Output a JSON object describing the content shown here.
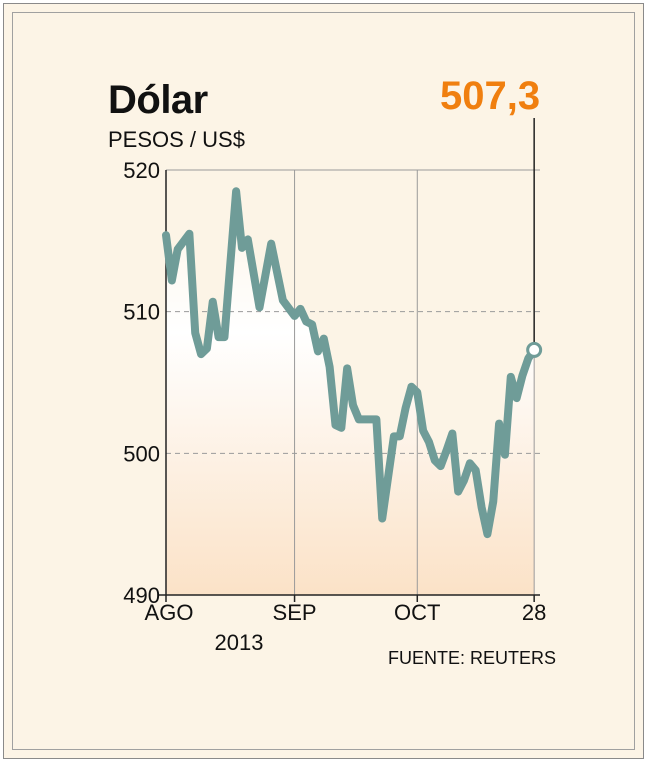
{
  "chart_data": {
    "type": "line",
    "title": "Dólar",
    "subtitle": "PESOS / US$",
    "ylim": [
      490,
      520
    ],
    "yticks": [
      520,
      510,
      500,
      490
    ],
    "xlim": [
      0,
      64
    ],
    "xticks": [
      {
        "label": "AGO",
        "x": 0
      },
      {
        "label": "SEP",
        "x": 22
      },
      {
        "label": "OCT",
        "x": 43
      },
      {
        "label": "28",
        "x": 63
      }
    ],
    "year_label": "2013",
    "current_value_label": "507,3",
    "grid": true,
    "source": "FUENTE: REUTERS",
    "colors": {
      "line": "#6f9c98",
      "accent": "#f07f0f",
      "grid": "#9a9a9a"
    },
    "series": [
      {
        "values": [
          {
            "x": 0,
            "y": 515.4
          },
          {
            "x": 1,
            "y": 512.2
          },
          {
            "x": 2,
            "y": 514.4
          },
          {
            "x": 4,
            "y": 515.5
          },
          {
            "x": 5,
            "y": 508.5
          },
          {
            "x": 6,
            "y": 507.0
          },
          {
            "x": 7,
            "y": 507.4
          },
          {
            "x": 8,
            "y": 510.7
          },
          {
            "x": 9,
            "y": 508.2
          },
          {
            "x": 10,
            "y": 508.2
          },
          {
            "x": 12,
            "y": 518.5
          },
          {
            "x": 13,
            "y": 514.5
          },
          {
            "x": 14,
            "y": 515.1
          },
          {
            "x": 16,
            "y": 510.3
          },
          {
            "x": 18,
            "y": 514.8
          },
          {
            "x": 20,
            "y": 510.8
          },
          {
            "x": 22,
            "y": 509.7
          },
          {
            "x": 23,
            "y": 510.2
          },
          {
            "x": 24,
            "y": 509.3
          },
          {
            "x": 25,
            "y": 509.1
          },
          {
            "x": 26,
            "y": 507.2
          },
          {
            "x": 27,
            "y": 508.1
          },
          {
            "x": 28,
            "y": 506.1
          },
          {
            "x": 29,
            "y": 502.0
          },
          {
            "x": 30,
            "y": 501.8
          },
          {
            "x": 31,
            "y": 506.0
          },
          {
            "x": 32,
            "y": 503.4
          },
          {
            "x": 33,
            "y": 502.4
          },
          {
            "x": 36,
            "y": 502.4
          },
          {
            "x": 37,
            "y": 495.4
          },
          {
            "x": 39,
            "y": 501.2
          },
          {
            "x": 40,
            "y": 501.2
          },
          {
            "x": 41,
            "y": 503.2
          },
          {
            "x": 42,
            "y": 504.7
          },
          {
            "x": 43,
            "y": 504.3
          },
          {
            "x": 44,
            "y": 501.6
          },
          {
            "x": 45,
            "y": 500.8
          },
          {
            "x": 46,
            "y": 499.5
          },
          {
            "x": 47,
            "y": 499.1
          },
          {
            "x": 48,
            "y": 500.2
          },
          {
            "x": 49,
            "y": 501.4
          },
          {
            "x": 50,
            "y": 497.3
          },
          {
            "x": 51,
            "y": 498.1
          },
          {
            "x": 52,
            "y": 499.3
          },
          {
            "x": 53,
            "y": 498.8
          },
          {
            "x": 54,
            "y": 496.2
          },
          {
            "x": 55,
            "y": 494.3
          },
          {
            "x": 56,
            "y": 496.6
          },
          {
            "x": 57,
            "y": 502.1
          },
          {
            "x": 58,
            "y": 499.9
          },
          {
            "x": 59,
            "y": 505.4
          },
          {
            "x": 60,
            "y": 503.9
          },
          {
            "x": 61,
            "y": 505.5
          },
          {
            "x": 62,
            "y": 506.7
          },
          {
            "x": 63,
            "y": 507.3
          }
        ]
      }
    ]
  }
}
